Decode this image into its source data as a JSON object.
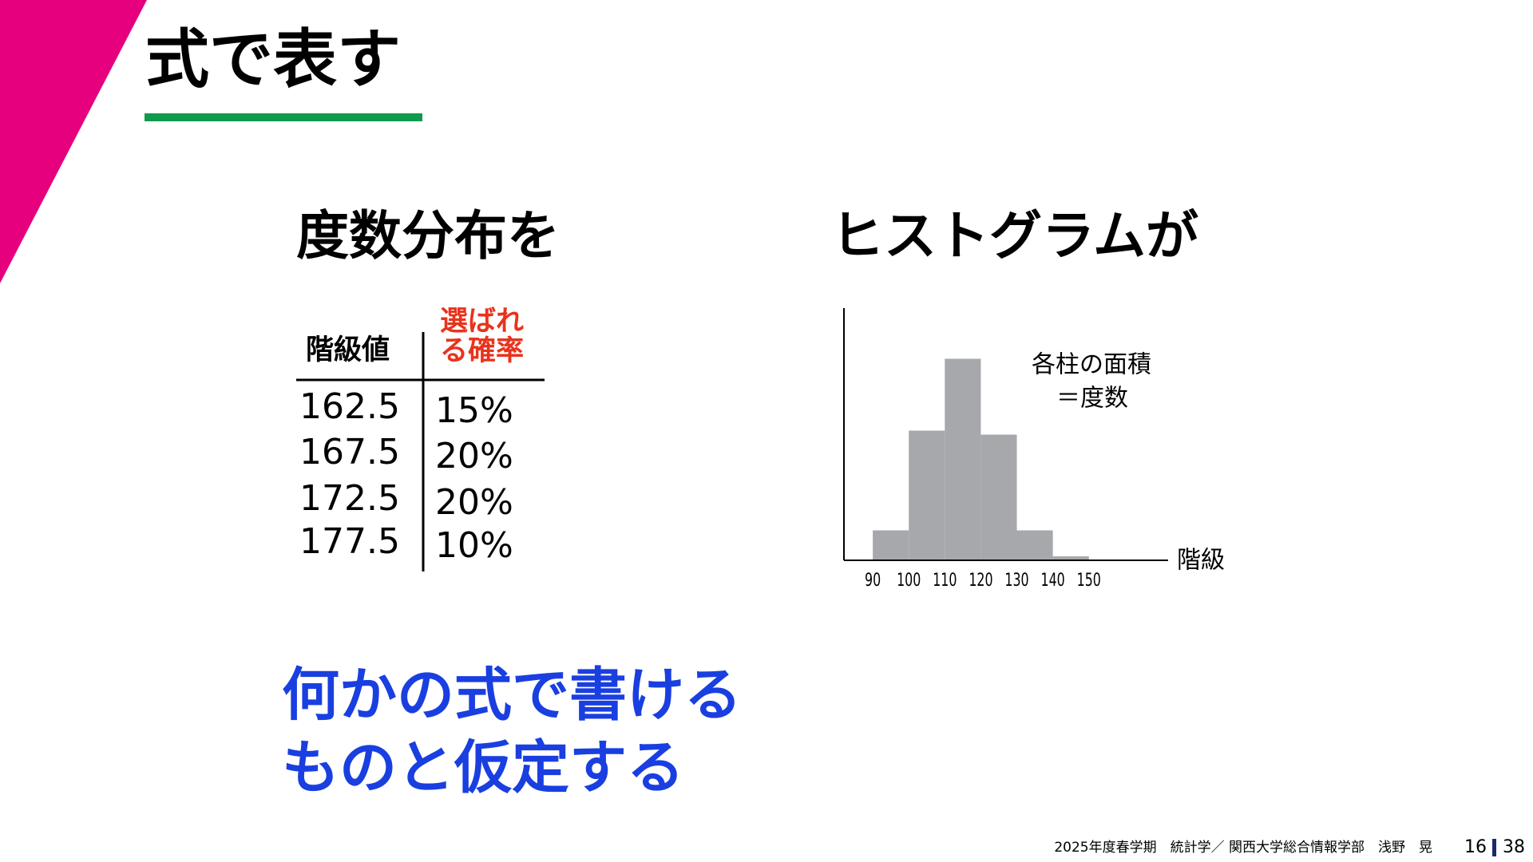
{
  "slide": {
    "title": "式で表す",
    "left_heading": "度数分布を",
    "right_heading": "ヒストグラムが",
    "table": {
      "header_class": "階級値",
      "header_prob_lines": [
        "選ばれ",
        "る確率"
      ],
      "rows": [
        [
          "162.5",
          "15%"
        ],
        [
          "167.5",
          "20%"
        ],
        [
          "172.5",
          "20%"
        ],
        [
          "177.5",
          "10%"
        ]
      ]
    },
    "histogram": {
      "type": "histogram",
      "bins": [
        90,
        100,
        110,
        120,
        130,
        140,
        150
      ],
      "counts": [
        15,
        65,
        101,
        63,
        15,
        2
      ],
      "xticks": [
        90,
        100,
        110,
        120,
        130,
        140,
        150
      ],
      "xlim": [
        82,
        172
      ],
      "xlabel": "階級",
      "annotation_lines": [
        "各柱の面積",
        "＝度数"
      ],
      "color": "#a7a8ac"
    },
    "conclusion_lines": [
      "何かの式で書ける",
      "ものと仮定する"
    ],
    "footer": "2025年度春学期　統計学／ 関西大学総合情報学部　浅野　晃",
    "page": "16",
    "total": "38"
  }
}
